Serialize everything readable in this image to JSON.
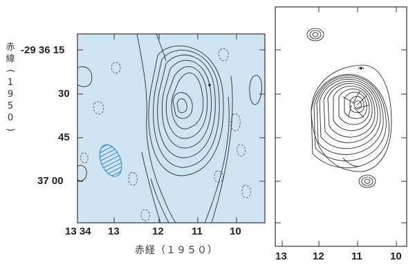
{
  "left_panel": {
    "y_tick_labels": [
      "-29 36 15",
      "30",
      "45",
      "37 00"
    ],
    "x_tick_labels": [
      "13 34",
      "13",
      "12",
      "11",
      "10"
    ],
    "y_axis_label_chars": [
      "赤",
      "緯",
      "(",
      "1",
      "9",
      "5",
      "0",
      ")"
    ],
    "x_axis_label": "赤経（１９５０）",
    "background_color": "#cfe4f3",
    "beam_color": "#3a8fc8"
  },
  "right_panel": {
    "x_tick_labels": [
      "13",
      "12",
      "11",
      "10"
    ]
  }
}
